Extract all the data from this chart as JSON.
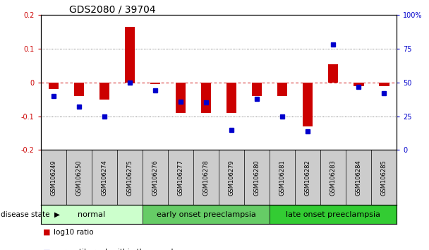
{
  "title": "GDS2080 / 39704",
  "samples": [
    "GSM106249",
    "GSM106250",
    "GSM106274",
    "GSM106275",
    "GSM106276",
    "GSM106277",
    "GSM106278",
    "GSM106279",
    "GSM106280",
    "GSM106281",
    "GSM106282",
    "GSM106283",
    "GSM106284",
    "GSM106285"
  ],
  "log10_ratio": [
    -0.02,
    -0.04,
    -0.05,
    0.165,
    -0.005,
    -0.09,
    -0.09,
    -0.09,
    -0.04,
    -0.04,
    -0.13,
    0.055,
    -0.01,
    -0.01
  ],
  "percentile_rank": [
    40,
    32,
    25,
    50,
    44,
    36,
    35,
    15,
    38,
    25,
    14,
    78,
    47,
    42
  ],
  "groups": [
    {
      "label": "normal",
      "start": 0,
      "end": 4,
      "color": "#ccffcc"
    },
    {
      "label": "early onset preeclampsia",
      "start": 4,
      "end": 9,
      "color": "#66cc66"
    },
    {
      "label": "late onset preeclampsia",
      "start": 9,
      "end": 14,
      "color": "#33cc33"
    }
  ],
  "ylim_left": [
    -0.2,
    0.2
  ],
  "ylim_right": [
    0,
    100
  ],
  "left_ticks": [
    -0.2,
    -0.1,
    0,
    0.1,
    0.2
  ],
  "right_ticks": [
    0,
    25,
    50,
    75,
    100
  ],
  "right_tick_labels": [
    "0",
    "25",
    "50",
    "75",
    "100%"
  ],
  "bar_color_red": "#cc0000",
  "bar_color_blue": "#0000cc",
  "zero_line_color": "#cc0000",
  "grid_color": "#555555",
  "bg_color": "#ffffff",
  "title_fontsize": 10,
  "tick_fontsize": 7,
  "sample_fontsize": 6,
  "group_label_fontsize": 8,
  "legend_fontsize": 7.5
}
